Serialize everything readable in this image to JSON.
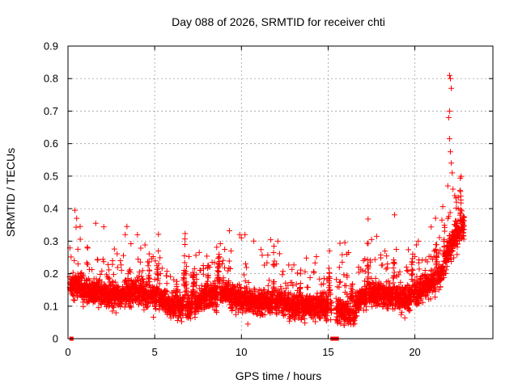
{
  "chart_data": {
    "type": "scatter",
    "title": "Day 088 of 2026, SRMTID for receiver chti",
    "xlabel": "GPS time / hours",
    "ylabel": "SRMTID / TECUs",
    "xlim": [
      0,
      24.5
    ],
    "ylim": [
      0,
      0.9
    ],
    "xticks": [
      0,
      5,
      10,
      15,
      20
    ],
    "xtick_labels": [
      "0",
      "5",
      "10",
      "15",
      "20"
    ],
    "yticks": [
      0,
      0.1,
      0.2,
      0.3,
      0.4,
      0.5,
      0.6,
      0.7,
      0.8,
      0.9
    ],
    "ytick_labels": [
      "0",
      "0.1",
      "0.2",
      "0.3",
      "0.4",
      "0.5",
      "0.6",
      "0.7",
      "0.8",
      "0.9"
    ],
    "grid": true,
    "marker": "plus",
    "color": "#ff0000",
    "generator": {
      "seed": 88,
      "step_hours": 0.0055,
      "x_start": 0.1,
      "x_end": 22.85,
      "gaps": [
        [
          15.2,
          15.45
        ],
        [
          22.85,
          24.5
        ]
      ],
      "baseline": [
        [
          0.0,
          0.16
        ],
        [
          0.5,
          0.17
        ],
        [
          1.0,
          0.15
        ],
        [
          2.0,
          0.14
        ],
        [
          3.0,
          0.13
        ],
        [
          4.0,
          0.145
        ],
        [
          5.0,
          0.13
        ],
        [
          6.0,
          0.1
        ],
        [
          7.0,
          0.1
        ],
        [
          8.0,
          0.13
        ],
        [
          9.0,
          0.14
        ],
        [
          10.0,
          0.12
        ],
        [
          11.0,
          0.11
        ],
        [
          12.0,
          0.12
        ],
        [
          13.0,
          0.1
        ],
        [
          14.0,
          0.1
        ],
        [
          15.0,
          0.1
        ],
        [
          15.5,
          0.09
        ],
        [
          16.0,
          0.085
        ],
        [
          16.4,
          0.065
        ],
        [
          16.8,
          0.12
        ],
        [
          17.5,
          0.14
        ],
        [
          18.5,
          0.13
        ],
        [
          19.5,
          0.12
        ],
        [
          20.5,
          0.16
        ],
        [
          21.0,
          0.17
        ],
        [
          21.5,
          0.2
        ],
        [
          22.0,
          0.28
        ],
        [
          22.5,
          0.33
        ],
        [
          22.85,
          0.35
        ]
      ],
      "noise_scale": 0.035,
      "spike_probability": 0.06,
      "spike_extra": [
        0.06,
        0.22
      ]
    },
    "highlight_points": [
      {
        "x": 0.4,
        "y": 0.395
      },
      {
        "x": 0.5,
        "y": 0.37
      },
      {
        "x": 0.7,
        "y": 0.345
      },
      {
        "x": 1.6,
        "y": 0.355
      },
      {
        "x": 3.4,
        "y": 0.345
      },
      {
        "x": 3.3,
        "y": 0.32
      },
      {
        "x": 9.9,
        "y": 0.32
      },
      {
        "x": 10.0,
        "y": 0.31
      },
      {
        "x": 12.1,
        "y": 0.3
      },
      {
        "x": 17.5,
        "y": 0.305
      },
      {
        "x": 20.2,
        "y": 0.3
      },
      {
        "x": 22.0,
        "y": 0.81
      },
      {
        "x": 22.05,
        "y": 0.8
      },
      {
        "x": 22.1,
        "y": 0.77
      },
      {
        "x": 22.0,
        "y": 0.7
      },
      {
        "x": 21.95,
        "y": 0.68
      },
      {
        "x": 22.0,
        "y": 0.615
      },
      {
        "x": 22.05,
        "y": 0.575
      },
      {
        "x": 22.1,
        "y": 0.54
      },
      {
        "x": 22.15,
        "y": 0.51
      },
      {
        "x": 21.9,
        "y": 0.47
      },
      {
        "x": 22.2,
        "y": 0.46
      },
      {
        "x": 22.3,
        "y": 0.44
      },
      {
        "x": 22.4,
        "y": 0.42
      },
      {
        "x": 22.5,
        "y": 0.4
      },
      {
        "x": 22.6,
        "y": 0.38
      },
      {
        "x": 22.35,
        "y": 0.35
      },
      {
        "x": 22.7,
        "y": 0.34
      },
      {
        "x": 22.45,
        "y": 0.33
      }
    ],
    "zero_points": [
      {
        "x": 0.2,
        "y": 0
      },
      {
        "x": 15.25,
        "y": 0
      },
      {
        "x": 15.38,
        "y": 0
      },
      {
        "x": 15.5,
        "y": 0
      }
    ]
  }
}
